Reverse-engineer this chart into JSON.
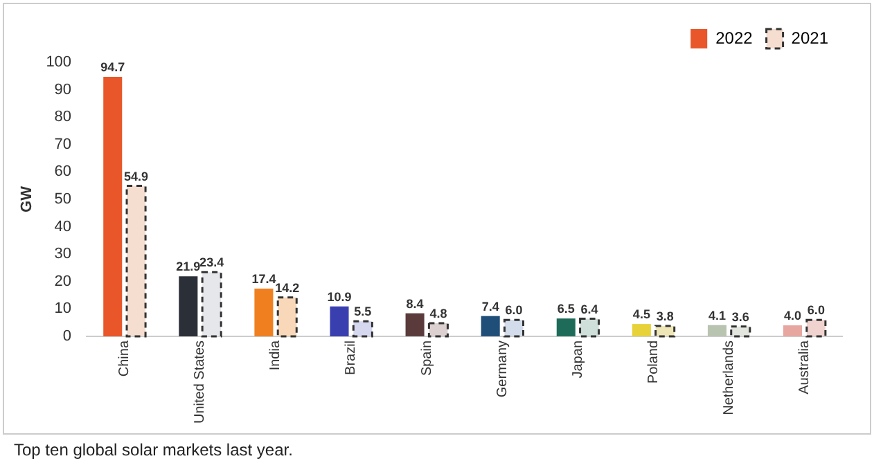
{
  "chart_data": {
    "type": "bar",
    "ylabel": "GW",
    "categories": [
      "China",
      "United States",
      "India",
      "Brazil",
      "Spain",
      "Germany",
      "Japan",
      "Poland",
      "Netherlands",
      "Australia"
    ],
    "series": [
      {
        "name": "2022",
        "color": "#e8562a",
        "colors": [
          "#e8562a",
          "#2b2f38",
          "#f0801f",
          "#3a3fb0",
          "#5a3a3a",
          "#1f4e79",
          "#1e6b5a",
          "#e8d23a",
          "#b8c4b0",
          "#e8a6a0"
        ],
        "values": [
          94.7,
          21.9,
          17.4,
          10.9,
          8.4,
          7.4,
          6.5,
          4.5,
          4.1,
          4.0
        ],
        "value_labels": [
          "94.7",
          "21.9",
          "17.4",
          "10.9",
          "8.4",
          "7.4",
          "6.5",
          "4.5",
          "4.1",
          "4.0"
        ]
      },
      {
        "name": "2021",
        "color": "#f5ddd0",
        "colors": [
          "#f5ddd0",
          "#e6e7ea",
          "#f8d8b8",
          "#d6d8f0",
          "#ddd0d0",
          "#d2dcea",
          "#cfe0da",
          "#efe6b8",
          "#e2e6de",
          "#f0d2cf"
        ],
        "line_style": "dashed",
        "values": [
          54.9,
          23.4,
          14.2,
          5.5,
          4.8,
          6.0,
          6.4,
          3.8,
          3.6,
          6.0
        ],
        "value_labels": [
          "54.9",
          "23.4",
          "14.2",
          "5.5",
          "4.8",
          "6.0",
          "6.4",
          "3.8",
          "3.6",
          "6.0"
        ]
      }
    ],
    "ylim": [
      0,
      100
    ],
    "yticks": [
      0,
      10,
      20,
      30,
      40,
      50,
      60,
      70,
      80,
      90,
      100
    ],
    "grid": false,
    "legend": "top right",
    "annotations": [
      "Top ten global solar markets last year."
    ]
  }
}
